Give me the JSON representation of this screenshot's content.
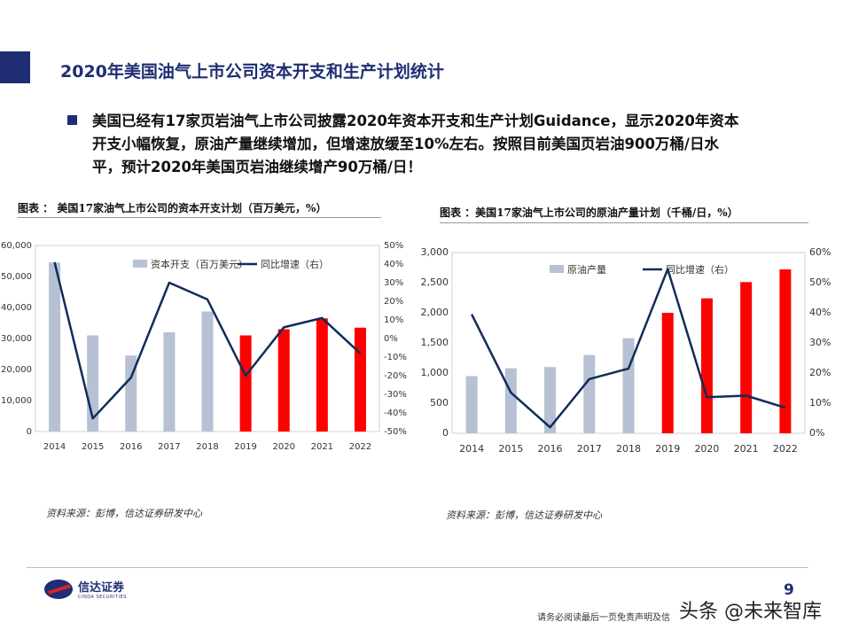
{
  "header": {
    "title": "2020年美国油气上市公司资本开支和生产计划统计"
  },
  "bullet": {
    "line1": "美国已经有17家页岩油气上市公司披露2020年资本开支和生产计划Guidance，显示2020年资本",
    "line2": "开支小幅恢复，原油产量继续增加，但增速放缓至10%左右。按照目前美国页岩油900万桶/日水",
    "line3": "平，预计2020年美国页岩油继续增产90万桶/日！"
  },
  "left_chart": {
    "caption": "图表 ： 美国17家油气上市公司的资本开支计划（百万美元，%）",
    "source": "资料来源：彭博，信达证券研发中心"
  },
  "right_chart": {
    "caption": "图表 ：美国17家油气上市公司的原油产量计划（千桶/日，%）",
    "source": "资料来源：彭博，信达证券研发中心"
  },
  "chart_data": [
    {
      "type": "bar+line",
      "categories": [
        "2014",
        "2015",
        "2016",
        "2017",
        "2018",
        "2019",
        "2020",
        "2021",
        "2022"
      ],
      "series": [
        {
          "name": "资本开支（百万美元）",
          "kind": "bar",
          "axis": "left",
          "values": [
            54500,
            31000,
            24500,
            32000,
            38700,
            31000,
            33000,
            36500,
            33500
          ],
          "colors": [
            "#b7c1d3",
            "#b7c1d3",
            "#b7c1d3",
            "#b7c1d3",
            "#b7c1d3",
            "#ff0000",
            "#ff0000",
            "#ff0000",
            "#ff0000"
          ]
        },
        {
          "name": "同比增速（右）",
          "kind": "line",
          "axis": "right",
          "color": "#0f2d5a",
          "values": [
            41,
            -43,
            -21,
            30,
            21,
            -20,
            6,
            11,
            -8
          ]
        }
      ],
      "ylim_left": [
        0,
        60000
      ],
      "yticks_left": [
        "0",
        "10,000",
        "20,000",
        "30,000",
        "40,000",
        "50,000",
        "60,000"
      ],
      "ylim_right": [
        -50,
        50
      ],
      "yticks_right": [
        "-50%",
        "-40%",
        "-30%",
        "-20%",
        "-10%",
        "0%",
        "10%",
        "20%",
        "30%",
        "40%",
        "50%"
      ],
      "legend_position": "top-center"
    },
    {
      "type": "bar+line",
      "categories": [
        "2014",
        "2015",
        "2016",
        "2017",
        "2018",
        "2019",
        "2020",
        "2021",
        "2022"
      ],
      "series": [
        {
          "name": "原油产量",
          "kind": "bar",
          "axis": "left",
          "values": [
            950,
            1080,
            1100,
            1300,
            1580,
            2000,
            2240,
            2510,
            2720
          ],
          "colors": [
            "#b7c1d3",
            "#b7c1d3",
            "#b7c1d3",
            "#b7c1d3",
            "#b7c1d3",
            "#ff0000",
            "#ff0000",
            "#ff0000",
            "#ff0000"
          ]
        },
        {
          "name": "同比增速（右）",
          "kind": "line",
          "axis": "right",
          "color": "#0f2d5a",
          "values": [
            39.5,
            13.5,
            2,
            18,
            21.5,
            54.5,
            12,
            12.5,
            8.5
          ]
        }
      ],
      "ylim_left": [
        0,
        3000
      ],
      "yticks_left": [
        "0",
        "500",
        "1,000",
        "1,500",
        "2,000",
        "2,500",
        "3,000"
      ],
      "ylim_right": [
        0,
        60
      ],
      "yticks_right": [
        "0%",
        "10%",
        "20%",
        "30%",
        "40%",
        "50%",
        "60%"
      ],
      "legend_position": "top-center"
    }
  ],
  "footer": {
    "logo_cn": "信达证券",
    "logo_en": "CINDA SECURITIES",
    "page_number": "9",
    "disclaimer": "请务必阅读最后一页免责声明及信",
    "watermark": "头条 @未来智库"
  }
}
